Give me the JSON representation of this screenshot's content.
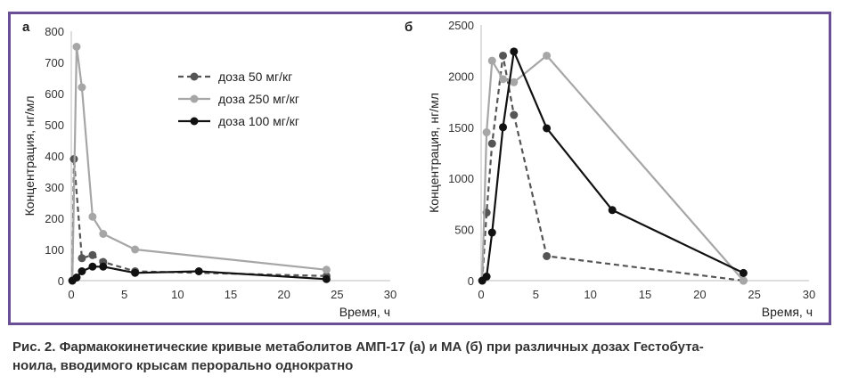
{
  "caption": {
    "line1": "Рис. 2. Фармакокинетические кривые метаболитов АМП-17 (а) и МА (б) при различных дозах Гестобута-",
    "line2": "ноила, вводимого крысам перорально однократно"
  },
  "colors": {
    "frame": "#6a4f96",
    "series_50": "#555555",
    "series_250": "#a6a6a6",
    "series_100": "#111111"
  },
  "chart_data": [
    {
      "type": "line",
      "panel_label": "а",
      "xlabel": "Время, ч",
      "ylabel": "Концентрация, нг/мл",
      "xlim": [
        0,
        30
      ],
      "ylim": [
        0,
        800
      ],
      "xticks": [
        0,
        5,
        10,
        15,
        20,
        25,
        30
      ],
      "yticks": [
        0,
        100,
        200,
        300,
        400,
        500,
        600,
        700,
        800
      ],
      "grid": false,
      "legend_position": "center",
      "series": [
        {
          "name": "доза 50 мг/кг",
          "style": "dashed",
          "color": "#555555",
          "x": [
            0.1,
            0.25,
            1,
            2,
            3,
            6,
            24
          ],
          "y": [
            0,
            390,
            72,
            82,
            60,
            30,
            15
          ]
        },
        {
          "name": "доза 250 мг/кг",
          "style": "solid",
          "color": "#a6a6a6",
          "x": [
            0.1,
            0.5,
            1,
            2,
            3,
            6,
            24
          ],
          "y": [
            0,
            750,
            620,
            205,
            150,
            100,
            35
          ]
        },
        {
          "name": "доза 100 мг/кг",
          "style": "solid",
          "color": "#111111",
          "x": [
            0.1,
            0.5,
            1,
            2,
            3,
            6,
            12,
            24
          ],
          "y": [
            0,
            10,
            30,
            45,
            45,
            25,
            30,
            5
          ]
        }
      ]
    },
    {
      "type": "line",
      "panel_label": "б",
      "xlabel": "Время, ч",
      "ylabel": "Концентрация, нг/мл",
      "xlim": [
        0,
        30
      ],
      "ylim": [
        0,
        2500
      ],
      "xticks": [
        0,
        5,
        10,
        15,
        20,
        25,
        30
      ],
      "yticks": [
        0,
        500,
        1000,
        1500,
        2000,
        2500
      ],
      "grid": false,
      "legend_position": "none",
      "series": [
        {
          "name": "доза 50 мг/кг",
          "style": "dashed",
          "color": "#555555",
          "x": [
            0.1,
            0.5,
            1,
            2,
            3,
            6,
            24
          ],
          "y": [
            0,
            665,
            1340,
            2200,
            1620,
            240,
            0
          ]
        },
        {
          "name": "доза 250 мг/кг",
          "style": "solid",
          "color": "#a6a6a6",
          "x": [
            0.1,
            0.5,
            1,
            2,
            3,
            6,
            24
          ],
          "y": [
            0,
            1450,
            2150,
            1970,
            1940,
            2200,
            0
          ]
        },
        {
          "name": "доза 100 мг/кг",
          "style": "solid",
          "color": "#111111",
          "x": [
            0.1,
            0.5,
            1,
            2,
            3,
            6,
            12,
            24
          ],
          "y": [
            0,
            40,
            470,
            1500,
            2240,
            1490,
            690,
            75
          ]
        }
      ]
    }
  ]
}
